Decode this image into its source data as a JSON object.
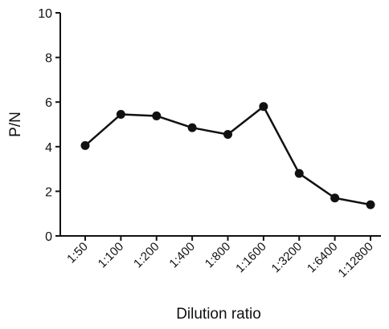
{
  "chart_data": {
    "type": "line",
    "title": "",
    "xlabel": "Dilution ratio",
    "ylabel": "P/N",
    "categories": [
      "1:50",
      "1:100",
      "1:200",
      "1:400",
      "1:800",
      "1:1600",
      "1:3200",
      "1:6400",
      "1:12800"
    ],
    "series": [
      {
        "values": [
          4.05,
          5.45,
          5.38,
          4.85,
          4.55,
          5.8,
          2.8,
          1.7,
          1.4
        ]
      }
    ],
    "ylim": [
      0,
      10
    ],
    "yticks": [
      0,
      2,
      4,
      6,
      8,
      10
    ],
    "grid": false,
    "legend": "none",
    "colors": {
      "line": "#111111",
      "marker": "#111111",
      "axis": "#111111"
    }
  }
}
